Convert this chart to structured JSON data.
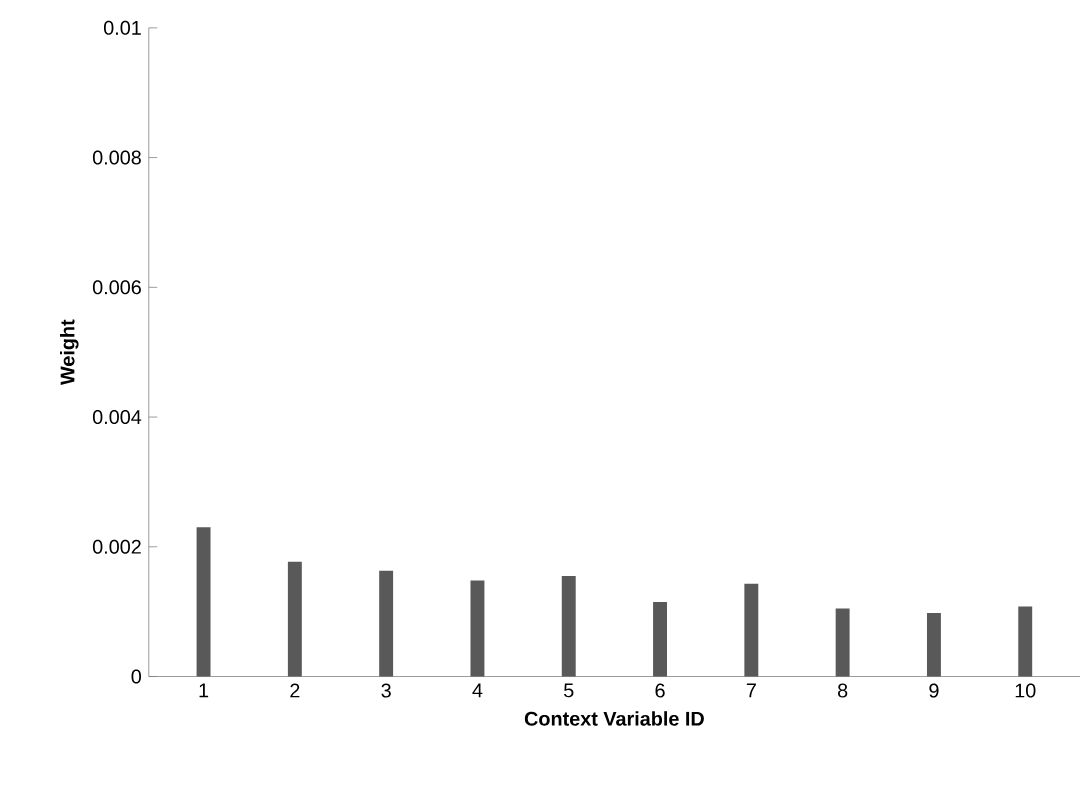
{
  "chart_data": {
    "type": "bar",
    "xlabel": "Context Variable ID",
    "ylabel": "Weight",
    "categories": [
      "1",
      "2",
      "3",
      "4",
      "5",
      "6",
      "7",
      "8",
      "9",
      "10"
    ],
    "values": [
      0.0023,
      0.00177,
      0.00163,
      0.00148,
      0.00155,
      0.00115,
      0.00143,
      0.00105,
      0.00098,
      0.00108
    ],
    "color": "#595959",
    "ylim": [
      0,
      0.01
    ],
    "yticks": [
      0,
      0.002,
      0.004,
      0.006,
      0.008,
      0.01
    ],
    "grid": false
  }
}
